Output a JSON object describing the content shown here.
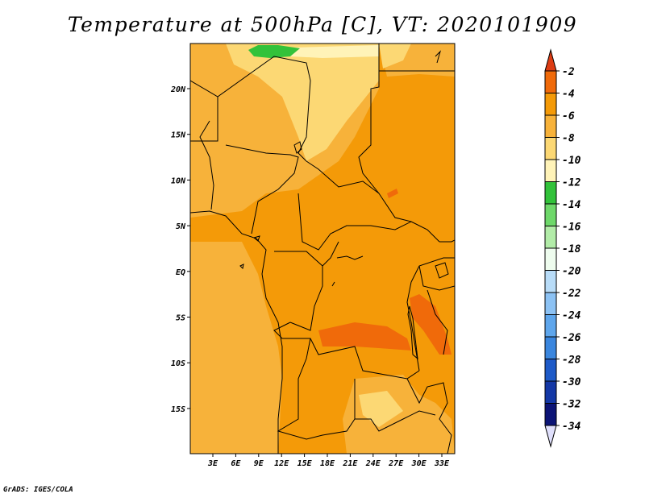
{
  "title": "Temperature at 500hPa [C], VT: 2020101909",
  "credit": "GrADS: IGES/COLA",
  "map": {
    "lon_labels": [
      "3E",
      "6E",
      "9E",
      "12E",
      "15E",
      "18E",
      "21E",
      "24E",
      "27E",
      "30E",
      "33E"
    ],
    "lat_labels": [
      "20N",
      "15N",
      "10N",
      "5N",
      "EQ",
      "5S",
      "10S",
      "15S"
    ]
  },
  "colorbar": {
    "labels": [
      "-2",
      "-4",
      "-6",
      "-8",
      "-10",
      "-12",
      "-14",
      "-16",
      "-18",
      "-20",
      "-22",
      "-24",
      "-26",
      "-28",
      "-30",
      "-32",
      "-34"
    ],
    "colors": [
      "#dc3c14",
      "#f06a0a",
      "#f49a08",
      "#f7b23a",
      "#fcd874",
      "#fff3b8",
      "#32c23a",
      "#6ed86a",
      "#b2eca8",
      "#eefcee",
      "#b8dcf8",
      "#8cc2f4",
      "#5ea6ec",
      "#3a86de",
      "#1e5ac8",
      "#1438a6",
      "#0c1476",
      "#e0e0fc"
    ]
  }
}
